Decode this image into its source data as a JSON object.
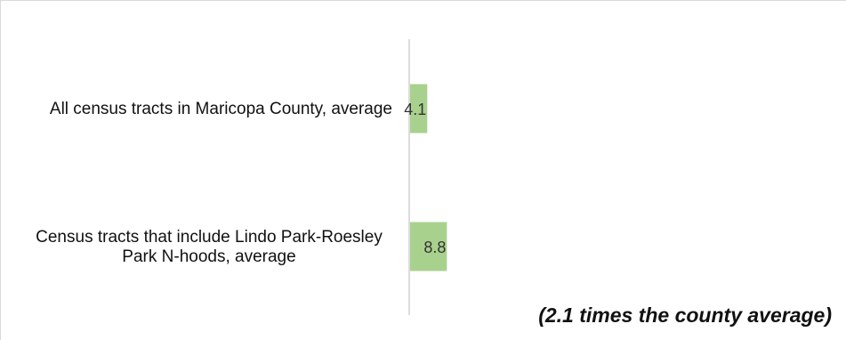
{
  "chart_data": {
    "type": "bar",
    "orientation": "horizontal",
    "categories": [
      "All census tracts in Maricopa County, average",
      "Census tracts that include Lindo Park-Roesley Park N-hoods, average"
    ],
    "category_label_lines": [
      [
        "All census tracts in Maricopa County, average"
      ],
      [
        "Census tracts that include Lindo Park-Roesley",
        "Park N-hoods, average"
      ]
    ],
    "values": [
      4.1,
      8.8
    ],
    "data_labels": [
      "4.1",
      "8.8"
    ],
    "xlim": [
      0,
      100
    ],
    "bar_color": "#a9d18e",
    "axis_color": "#d0d0d0",
    "grid": false,
    "title": "",
    "xlabel": "",
    "ylabel": "",
    "annotation": "(2.1 times the county average)"
  }
}
